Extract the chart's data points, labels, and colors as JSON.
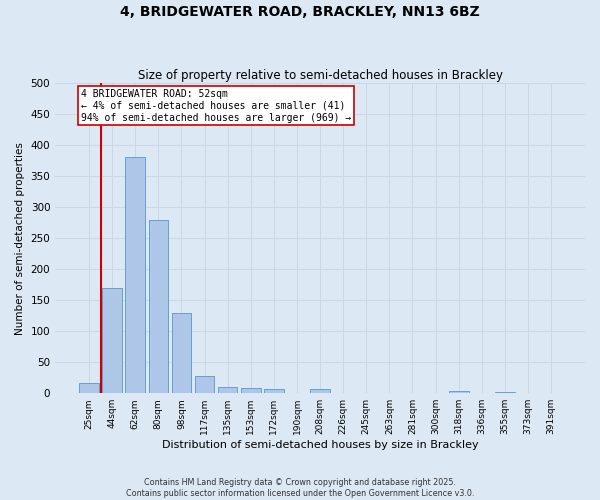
{
  "title_line1": "4, BRIDGEWATER ROAD, BRACKLEY, NN13 6BZ",
  "title_line2": "Size of property relative to semi-detached houses in Brackley",
  "xlabel": "Distribution of semi-detached houses by size in Brackley",
  "ylabel": "Number of semi-detached properties",
  "categories": [
    "25sqm",
    "44sqm",
    "62sqm",
    "80sqm",
    "98sqm",
    "117sqm",
    "135sqm",
    "153sqm",
    "172sqm",
    "190sqm",
    "208sqm",
    "226sqm",
    "245sqm",
    "263sqm",
    "281sqm",
    "300sqm",
    "318sqm",
    "336sqm",
    "355sqm",
    "373sqm",
    "391sqm"
  ],
  "values": [
    17,
    170,
    381,
    280,
    130,
    28,
    10,
    9,
    7,
    0,
    7,
    0,
    0,
    0,
    0,
    0,
    3,
    0,
    2,
    0,
    0
  ],
  "bar_color": "#aec6e8",
  "bar_edge_color": "#5a96c8",
  "grid_color": "#c8d8ea",
  "background_color": "#dce8f4",
  "vline_x_index": 0.5,
  "vline_color": "#cc0000",
  "annotation_text": "4 BRIDGEWATER ROAD: 52sqm\n← 4% of semi-detached houses are smaller (41)\n94% of semi-detached houses are larger (969) →",
  "annotation_box_color": "#ffffff",
  "annotation_box_edge_color": "#cc0000",
  "footnote": "Contains HM Land Registry data © Crown copyright and database right 2025.\nContains public sector information licensed under the Open Government Licence v3.0.",
  "ylim": [
    0,
    500
  ],
  "yticks": [
    0,
    50,
    100,
    150,
    200,
    250,
    300,
    350,
    400,
    450,
    500
  ]
}
